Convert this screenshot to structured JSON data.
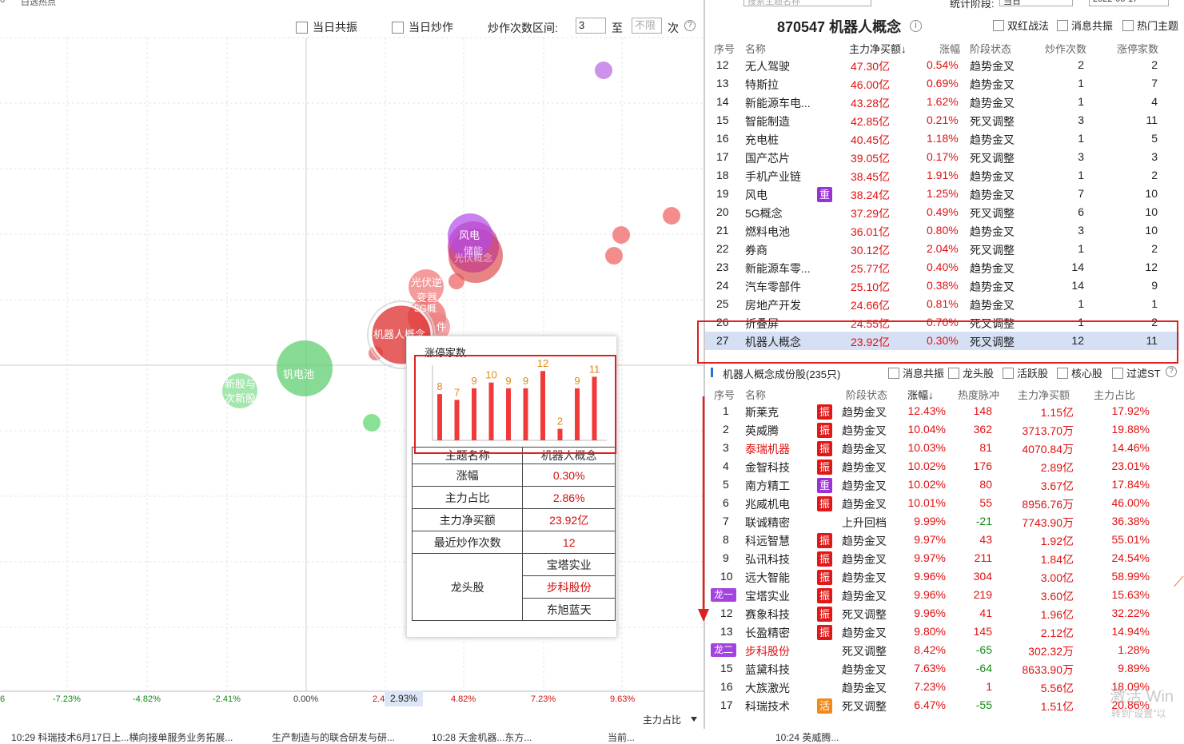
{
  "top_strip": {
    "left_text": "白选热点"
  },
  "controls": {
    "cb_resonance": "当日共振",
    "cb_hype": "当日炒作",
    "range_label": "炒作次数区间:",
    "range_from": "3",
    "range_to_label": "至",
    "range_to_placeholder": "不限",
    "range_unit": "次",
    "help": "?"
  },
  "x_axis": {
    "ticks": [
      "-7.23%",
      "-4.82%",
      "-2.41%",
      "0.00%",
      "2.4",
      "4.82%",
      "7.23%",
      "9.63%"
    ],
    "selected": "2.93%",
    "label": "主力占比",
    "left_edge": "6"
  },
  "bubbles": [
    {
      "label": "风电",
      "color": "#b44be8"
    },
    {
      "label": "储能",
      "color": "#d64a78"
    },
    {
      "label": "光伏概念",
      "color": "#e05a5a"
    },
    {
      "label": "光伏逆",
      "color": "#f07a7a"
    },
    {
      "label": "变器",
      "color": "#f07a7a"
    },
    {
      "label": "5G概",
      "color": "#f07a7a"
    },
    {
      "label": "件",
      "color": "#f07a7a"
    },
    {
      "label": "机器人概念",
      "color": "#e03a3a"
    },
    {
      "label": "钒电池",
      "color": "#55cc66"
    },
    {
      "label": "新股与",
      "color": "#7adf88"
    },
    {
      "label": "次新股",
      "color": "#7adf88"
    }
  ],
  "tooltip": {
    "chart_title": "涨停家数",
    "chart_data": {
      "type": "bar",
      "values": [
        8,
        7,
        9,
        10,
        9,
        9,
        12,
        2,
        9,
        11
      ],
      "ylim": [
        0,
        13
      ],
      "color": "#f03a3a",
      "label_color": "#e08a10"
    },
    "rows": [
      {
        "k": "主题名称",
        "v": "机器人概念"
      },
      {
        "k": "涨幅",
        "v": "0.30%"
      },
      {
        "k": "主力占比",
        "v": "2.86%"
      },
      {
        "k": "主力净买额",
        "v": "23.92亿"
      },
      {
        "k": "最近炒作次数",
        "v": "12"
      }
    ],
    "leader_label": "龙头股",
    "leaders": [
      "宝塔实业",
      "步科股份",
      "东旭蓝天"
    ]
  },
  "right_top": {
    "search_placeholder": "搜索主题名称",
    "period_label": "统计阶段:",
    "period_value": "当日",
    "date": "2022-06-17"
  },
  "header": {
    "title": "870547 机器人概念",
    "info": "i",
    "cb1": "双红战法",
    "cb2": "消息共振",
    "cb3": "热门主题"
  },
  "theme_table": {
    "columns": [
      "序号",
      "名称",
      "主力净买额↓",
      "涨幅",
      "阶段状态",
      "炒作次数",
      "涨停家数"
    ],
    "rows": [
      {
        "no": "12",
        "name": "无人驾驶",
        "net": "47.30亿",
        "chg": "0.54%",
        "state": "趋势金叉",
        "hype": "2",
        "limit": "2"
      },
      {
        "no": "13",
        "name": "特斯拉",
        "net": "46.00亿",
        "chg": "0.69%",
        "state": "趋势金叉",
        "hype": "1",
        "limit": "7"
      },
      {
        "no": "14",
        "name": "新能源车电...",
        "net": "43.28亿",
        "chg": "1.62%",
        "state": "趋势金叉",
        "hype": "1",
        "limit": "4"
      },
      {
        "no": "15",
        "name": "智能制造",
        "net": "42.85亿",
        "chg": "0.21%",
        "state": "死叉调整",
        "hype": "3",
        "limit": "11"
      },
      {
        "no": "16",
        "name": "充电桩",
        "net": "40.45亿",
        "chg": "1.18%",
        "state": "趋势金叉",
        "hype": "1",
        "limit": "5"
      },
      {
        "no": "17",
        "name": "国产芯片",
        "net": "39.05亿",
        "chg": "0.17%",
        "state": "死叉调整",
        "hype": "3",
        "limit": "3"
      },
      {
        "no": "18",
        "name": "手机产业链",
        "net": "38.45亿",
        "chg": "1.91%",
        "state": "趋势金叉",
        "hype": "1",
        "limit": "2"
      },
      {
        "no": "19",
        "name": "风电",
        "badge": "重",
        "net": "38.24亿",
        "chg": "1.25%",
        "state": "趋势金叉",
        "hype": "7",
        "limit": "10"
      },
      {
        "no": "20",
        "name": "5G概念",
        "net": "37.29亿",
        "chg": "0.49%",
        "state": "死叉调整",
        "hype": "6",
        "limit": "10"
      },
      {
        "no": "21",
        "name": "燃料电池",
        "net": "36.01亿",
        "chg": "0.80%",
        "state": "趋势金叉",
        "hype": "3",
        "limit": "10"
      },
      {
        "no": "22",
        "name": "券商",
        "net": "30.12亿",
        "chg": "2.04%",
        "state": "死叉调整",
        "hype": "1",
        "limit": "2"
      },
      {
        "no": "23",
        "name": "新能源车零...",
        "net": "25.77亿",
        "chg": "0.40%",
        "state": "趋势金叉",
        "hype": "14",
        "limit": "12"
      },
      {
        "no": "24",
        "name": "汽车零部件",
        "net": "25.10亿",
        "chg": "0.38%",
        "state": "趋势金叉",
        "hype": "14",
        "limit": "9"
      },
      {
        "no": "25",
        "name": "房地产开发",
        "net": "24.66亿",
        "chg": "0.81%",
        "state": "趋势金叉",
        "hype": "1",
        "limit": "1"
      },
      {
        "no": "26",
        "name": "折叠屏",
        "net": "24.55亿",
        "chg": "0.70%",
        "state": "死叉调整",
        "hype": "1",
        "limit": "2"
      },
      {
        "no": "27",
        "name": "机器人概念",
        "net": "23.92亿",
        "chg": "0.30%",
        "state": "死叉调整",
        "hype": "12",
        "limit": "11"
      }
    ]
  },
  "sub_header": {
    "title": "机器人概念成份股(235只)",
    "cb1": "消息共振",
    "cb2": "龙头股",
    "cb3": "活跃股",
    "cb4": "核心股",
    "cb5": "过滤ST",
    "help": "?"
  },
  "stock_table": {
    "columns": [
      "序号",
      "名称",
      "阶段状态",
      "涨幅↓",
      "热度脉冲",
      "主力净买额",
      "主力占比"
    ],
    "rows": [
      {
        "no": "1",
        "name": "斯莱克",
        "badge": "振",
        "badge_color": "red",
        "state": "趋势金叉",
        "chg": "12.43%",
        "heat": "148",
        "net": "1.15亿",
        "ratio": "17.92%"
      },
      {
        "no": "2",
        "name": "英威腾",
        "badge": "振",
        "badge_color": "red",
        "state": "趋势金叉",
        "chg": "10.04%",
        "heat": "362",
        "net": "3713.70万",
        "ratio": "19.88%"
      },
      {
        "no": "3",
        "name": "泰瑞机器",
        "name_red": true,
        "badge": "振",
        "badge_color": "red",
        "state": "趋势金叉",
        "chg": "10.03%",
        "heat": "81",
        "net": "4070.84万",
        "ratio": "14.46%"
      },
      {
        "no": "4",
        "name": "金智科技",
        "badge": "振",
        "badge_color": "red",
        "state": "趋势金叉",
        "chg": "10.02%",
        "heat": "176",
        "net": "2.89亿",
        "ratio": "23.01%"
      },
      {
        "no": "5",
        "name": "南方精工",
        "badge": "重",
        "badge_color": "pur",
        "state": "趋势金叉",
        "chg": "10.02%",
        "heat": "80",
        "net": "3.67亿",
        "ratio": "17.84%"
      },
      {
        "no": "6",
        "name": "兆威机电",
        "badge": "振",
        "badge_color": "red",
        "state": "趋势金叉",
        "chg": "10.01%",
        "heat": "55",
        "net": "8956.76万",
        "ratio": "46.00%"
      },
      {
        "no": "7",
        "name": "联诚精密",
        "state": "上升回档",
        "chg": "9.99%",
        "heat": "-21",
        "net": "7743.90万",
        "ratio": "36.38%"
      },
      {
        "no": "8",
        "name": "科远智慧",
        "badge": "振",
        "badge_color": "red",
        "state": "趋势金叉",
        "chg": "9.97%",
        "heat": "43",
        "net": "1.92亿",
        "ratio": "55.01%"
      },
      {
        "no": "9",
        "name": "弘讯科技",
        "badge": "振",
        "badge_color": "red",
        "state": "趋势金叉",
        "chg": "9.97%",
        "heat": "211",
        "net": "1.84亿",
        "ratio": "24.54%"
      },
      {
        "no": "10",
        "name": "远大智能",
        "badge": "振",
        "badge_color": "red",
        "state": "趋势金叉",
        "chg": "9.96%",
        "heat": "304",
        "net": "3.00亿",
        "ratio": "58.99%"
      },
      {
        "no": "",
        "lead": "龙一",
        "name": "宝塔实业",
        "badge": "振",
        "badge_color": "red",
        "state": "趋势金叉",
        "chg": "9.96%",
        "heat": "219",
        "net": "3.60亿",
        "ratio": "15.63%"
      },
      {
        "no": "12",
        "name": "赛象科技",
        "badge": "振",
        "badge_color": "red",
        "state": "死叉调整",
        "chg": "9.96%",
        "heat": "41",
        "net": "1.96亿",
        "ratio": "32.22%"
      },
      {
        "no": "13",
        "name": "长盈精密",
        "badge": "振",
        "badge_color": "red",
        "state": "趋势金叉",
        "chg": "9.80%",
        "heat": "145",
        "net": "2.12亿",
        "ratio": "14.94%"
      },
      {
        "no": "",
        "lead": "龙二",
        "name": "步科股份",
        "name_red": true,
        "state": "死叉调整",
        "chg": "8.42%",
        "heat": "-65",
        "net": "302.32万",
        "ratio": "1.28%"
      },
      {
        "no": "15",
        "name": "蓝黛科技",
        "state": "趋势金叉",
        "chg": "7.63%",
        "heat": "-64",
        "net": "8633.90万",
        "ratio": "9.89%"
      },
      {
        "no": "16",
        "name": "大族激光",
        "state": "趋势金叉",
        "chg": "7.23%",
        "heat": "1",
        "net": "5.56亿",
        "ratio": "18.09%"
      },
      {
        "no": "17",
        "name": "科瑞技术",
        "badge": "活",
        "badge_color": "org",
        "state": "死叉调整",
        "chg": "6.47%",
        "heat": "-55",
        "net": "1.51亿",
        "ratio": "20.86%"
      }
    ]
  },
  "watermark": {
    "line1": "激活 Win",
    "line2": "转到\"设置\"以"
  },
  "ticker": {
    "items": [
      "10:29 科瑞技术6月17日上...横向接单服务业务拓展...",
      "生产制造与的联合研发与研...",
      "10:28 天金机器...东方...",
      "当前...",
      "10:24 英威腾..."
    ]
  }
}
